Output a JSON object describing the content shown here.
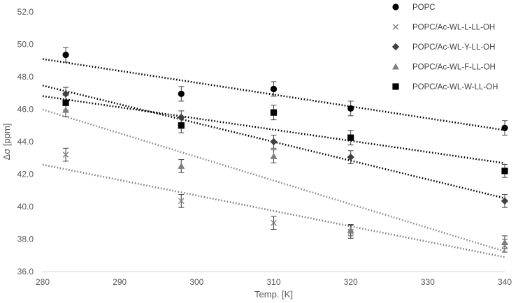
{
  "chart_data": {
    "type": "scatter",
    "title": "",
    "xlabel": "Temp. [K]",
    "ylabel": "Δσ [ppm]",
    "xlim": [
      280,
      340
    ],
    "ylim": [
      36.0,
      52.0
    ],
    "xticks": [
      280,
      290,
      300,
      310,
      320,
      330,
      340
    ],
    "yticks": [
      36.0,
      38.0,
      40.0,
      42.0,
      44.0,
      46.0,
      48.0,
      50.0,
      52.0
    ],
    "x": [
      283,
      298,
      310,
      320,
      340
    ],
    "grid": false,
    "legend_position": "top-right",
    "series": [
      {
        "name": "POPC",
        "marker": "circle",
        "color": "#000000",
        "values": [
          49.35,
          46.95,
          47.25,
          46.05,
          44.85
        ],
        "error": [
          0.45,
          0.45,
          0.45,
          0.45,
          0.45
        ],
        "trendline": {
          "type": "linear",
          "color": "#000000",
          "style": "dotted"
        }
      },
      {
        "name": "POPC/Ac-WL-L-LL-OH",
        "marker": "x",
        "color": "#808080",
        "values": [
          43.2,
          40.35,
          39.0,
          38.45,
          37.6
        ],
        "error": [
          0.4,
          0.4,
          0.4,
          0.4,
          0.4
        ],
        "trendline": {
          "type": "linear",
          "color": "#808080",
          "style": "dotted"
        }
      },
      {
        "name": "POPC/Ac-WL-Y-LL-OH",
        "marker": "diamond",
        "color": "#404040",
        "values": [
          46.95,
          45.5,
          44.0,
          43.05,
          40.35
        ],
        "error": [
          0.4,
          0.4,
          0.4,
          0.4,
          0.4
        ],
        "trendline": {
          "type": "linear",
          "color": "#000000",
          "style": "dotted"
        }
      },
      {
        "name": "POPC/Ac-WL-F-LL-OH",
        "marker": "triangle",
        "color": "#7f7f7f",
        "values": [
          45.95,
          42.5,
          43.1,
          38.55,
          37.8
        ],
        "error": [
          0.4,
          0.4,
          0.4,
          0.35,
          0.4
        ],
        "trendline": {
          "type": "linear",
          "color": "#8c8c8c",
          "style": "dotted"
        }
      },
      {
        "name": "POPC/Ac-WL-W-LL-OH",
        "marker": "square",
        "color": "#000000",
        "values": [
          46.4,
          45.0,
          45.8,
          44.25,
          42.2
        ],
        "error": [
          0.45,
          0.45,
          0.45,
          0.45,
          0.4
        ],
        "trendline": {
          "type": "linear",
          "color": "#000000",
          "style": "dotted"
        }
      }
    ]
  }
}
